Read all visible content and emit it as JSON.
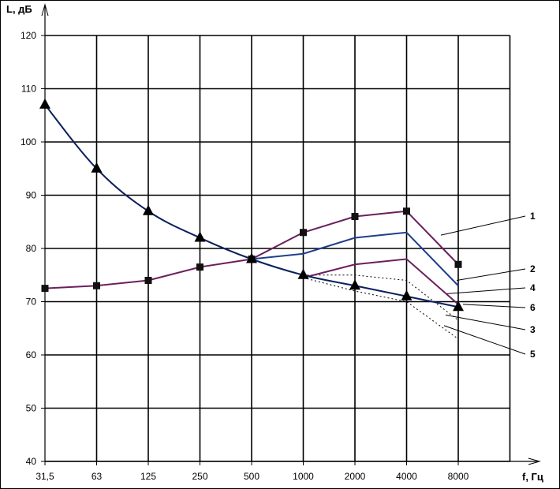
{
  "chart_data": {
    "type": "line",
    "xlabel": "f, Гц",
    "ylabel": "L, дБ",
    "categories": [
      "31,5",
      "63",
      "125",
      "250",
      "500",
      "1000",
      "2000",
      "4000",
      "8000"
    ],
    "yticks": [
      "40",
      "50",
      "60",
      "70",
      "80",
      "90",
      "100",
      "110",
      "120"
    ],
    "ylim": [
      40,
      120
    ],
    "grid": true,
    "series": [
      {
        "name": "1",
        "marker": "square",
        "color": "#6b1f5e",
        "dash": false,
        "values": [
          72.5,
          73,
          74,
          76.5,
          78,
          83,
          86,
          87,
          77
        ]
      },
      {
        "name": "2",
        "marker": "none",
        "color": "#1f3f8a",
        "dash": false,
        "values": [
          null,
          null,
          null,
          null,
          78,
          79,
          82,
          83,
          73
        ]
      },
      {
        "name": "3",
        "marker": "none",
        "color": "#6b1f5e",
        "dash": false,
        "values": [
          null,
          null,
          null,
          null,
          null,
          74.5,
          77,
          78,
          69.5
        ]
      },
      {
        "name": "4",
        "marker": "none",
        "color": "#000000",
        "dash": true,
        "values": [
          null,
          null,
          null,
          null,
          null,
          75,
          75,
          74,
          66.5
        ]
      },
      {
        "name": "5",
        "marker": "none",
        "color": "#000000",
        "dash": true,
        "values": [
          null,
          null,
          null,
          null,
          null,
          74.5,
          72,
          70,
          63
        ]
      },
      {
        "name": "6",
        "marker": "triangle",
        "color": "#0a1f5c",
        "dash": false,
        "values": [
          107,
          95,
          87,
          82,
          78,
          75,
          73,
          71,
          69
        ]
      }
    ],
    "annotations": [
      {
        "label": "1",
        "series": "1"
      },
      {
        "label": "2",
        "series": "2"
      },
      {
        "label": "4",
        "series": "4"
      },
      {
        "label": "6",
        "series": "6"
      },
      {
        "label": "3",
        "series": "3"
      },
      {
        "label": "5",
        "series": "5"
      }
    ]
  }
}
